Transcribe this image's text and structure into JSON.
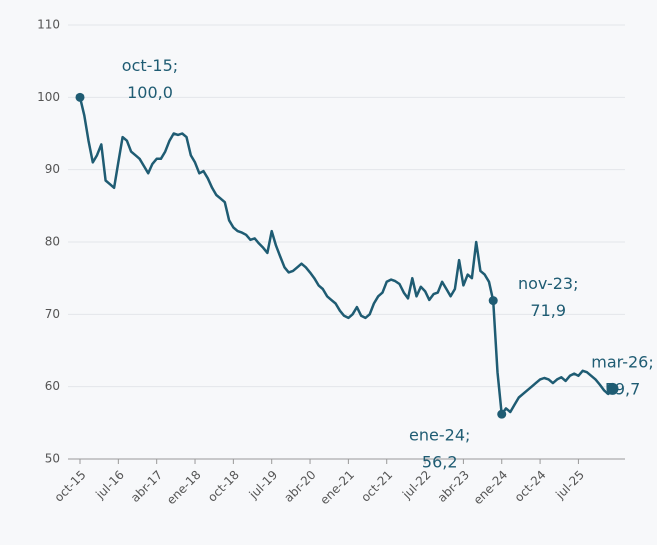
{
  "chart_data": {
    "type": "line",
    "categories": [
      "oct-15",
      null,
      null,
      null,
      null,
      null,
      null,
      null,
      null,
      "jul-16",
      null,
      null,
      null,
      null,
      null,
      null,
      null,
      null,
      "abr-17",
      null,
      null,
      null,
      null,
      null,
      null,
      null,
      null,
      "ene-18",
      null,
      null,
      null,
      null,
      null,
      null,
      null,
      null,
      "oct-18",
      null,
      null,
      null,
      null,
      null,
      null,
      null,
      null,
      "jul-19",
      null,
      null,
      null,
      null,
      null,
      null,
      null,
      null,
      "abr-20",
      null,
      null,
      null,
      null,
      null,
      null,
      null,
      null,
      "ene-21",
      null,
      null,
      null,
      null,
      null,
      null,
      null,
      null,
      "oct-21",
      null,
      null,
      null,
      null,
      null,
      null,
      null,
      null,
      "jul-22",
      null,
      null,
      null,
      null,
      null,
      null,
      null,
      null,
      "abr-23",
      null,
      null,
      null,
      null,
      null,
      null,
      null,
      null,
      "ene-24",
      null,
      null,
      null,
      null,
      null,
      null,
      null,
      null,
      "oct-24",
      null,
      null,
      null,
      null,
      null,
      null,
      null,
      null,
      "jul-25",
      null,
      null,
      null,
      null,
      null,
      null,
      null,
      null
    ],
    "series": [
      {
        "color": "#1f5c73",
        "values": [
          100,
          97.5,
          94,
          91,
          92,
          93.5,
          88.5,
          88,
          87.5,
          91,
          94.5,
          94,
          92.5,
          92,
          91.5,
          90.5,
          89.5,
          90.8,
          91.5,
          91.5,
          92.5,
          94,
          95,
          94.8,
          95,
          94.5,
          92,
          91,
          89.5,
          89.8,
          88.8,
          87.5,
          86.5,
          86,
          85.5,
          83,
          82,
          81.5,
          81.3,
          81,
          80.3,
          80.5,
          79.8,
          79.2,
          78.5,
          81.5,
          79.5,
          78,
          76.5,
          75.8,
          76,
          76.5,
          77,
          76.5,
          75.8,
          75,
          74,
          73.5,
          72.5,
          72,
          71.5,
          70.5,
          69.8,
          69.5,
          70,
          71,
          69.8,
          69.5,
          70,
          71.5,
          72.5,
          73,
          74.5,
          74.8,
          74.6,
          74.2,
          73,
          72.2,
          75,
          72.5,
          73.8,
          73.2,
          72,
          72.8,
          73,
          74.5,
          73.5,
          72.5,
          73.5,
          77.5,
          74,
          75.5,
          75,
          80,
          76,
          75.5,
          74.5,
          71.9,
          62,
          56.2,
          57,
          56.5,
          57.5,
          58.5,
          59,
          59.5,
          60,
          60.5,
          61,
          61.2,
          61,
          60.5,
          61,
          61.3,
          60.8,
          61.5,
          61.8,
          61.5,
          62.2,
          62,
          61.5,
          61,
          60.3,
          59.5,
          59,
          59.7
        ]
      }
    ],
    "annotations": [
      {
        "index": 0,
        "lines": [
          "oct-15;",
          "100,0"
        ]
      },
      {
        "index": 97,
        "lines": [
          "nov-23;",
          "71,9"
        ]
      },
      {
        "index": 99,
        "lines": [
          "ene-24;",
          "56,2"
        ]
      },
      {
        "index": 125,
        "lines": [
          "mar-26;",
          "59,7"
        ]
      }
    ],
    "ylim": [
      50,
      110
    ],
    "yticks": [
      50,
      60,
      70,
      80,
      90,
      100,
      110
    ],
    "grid": true
  }
}
